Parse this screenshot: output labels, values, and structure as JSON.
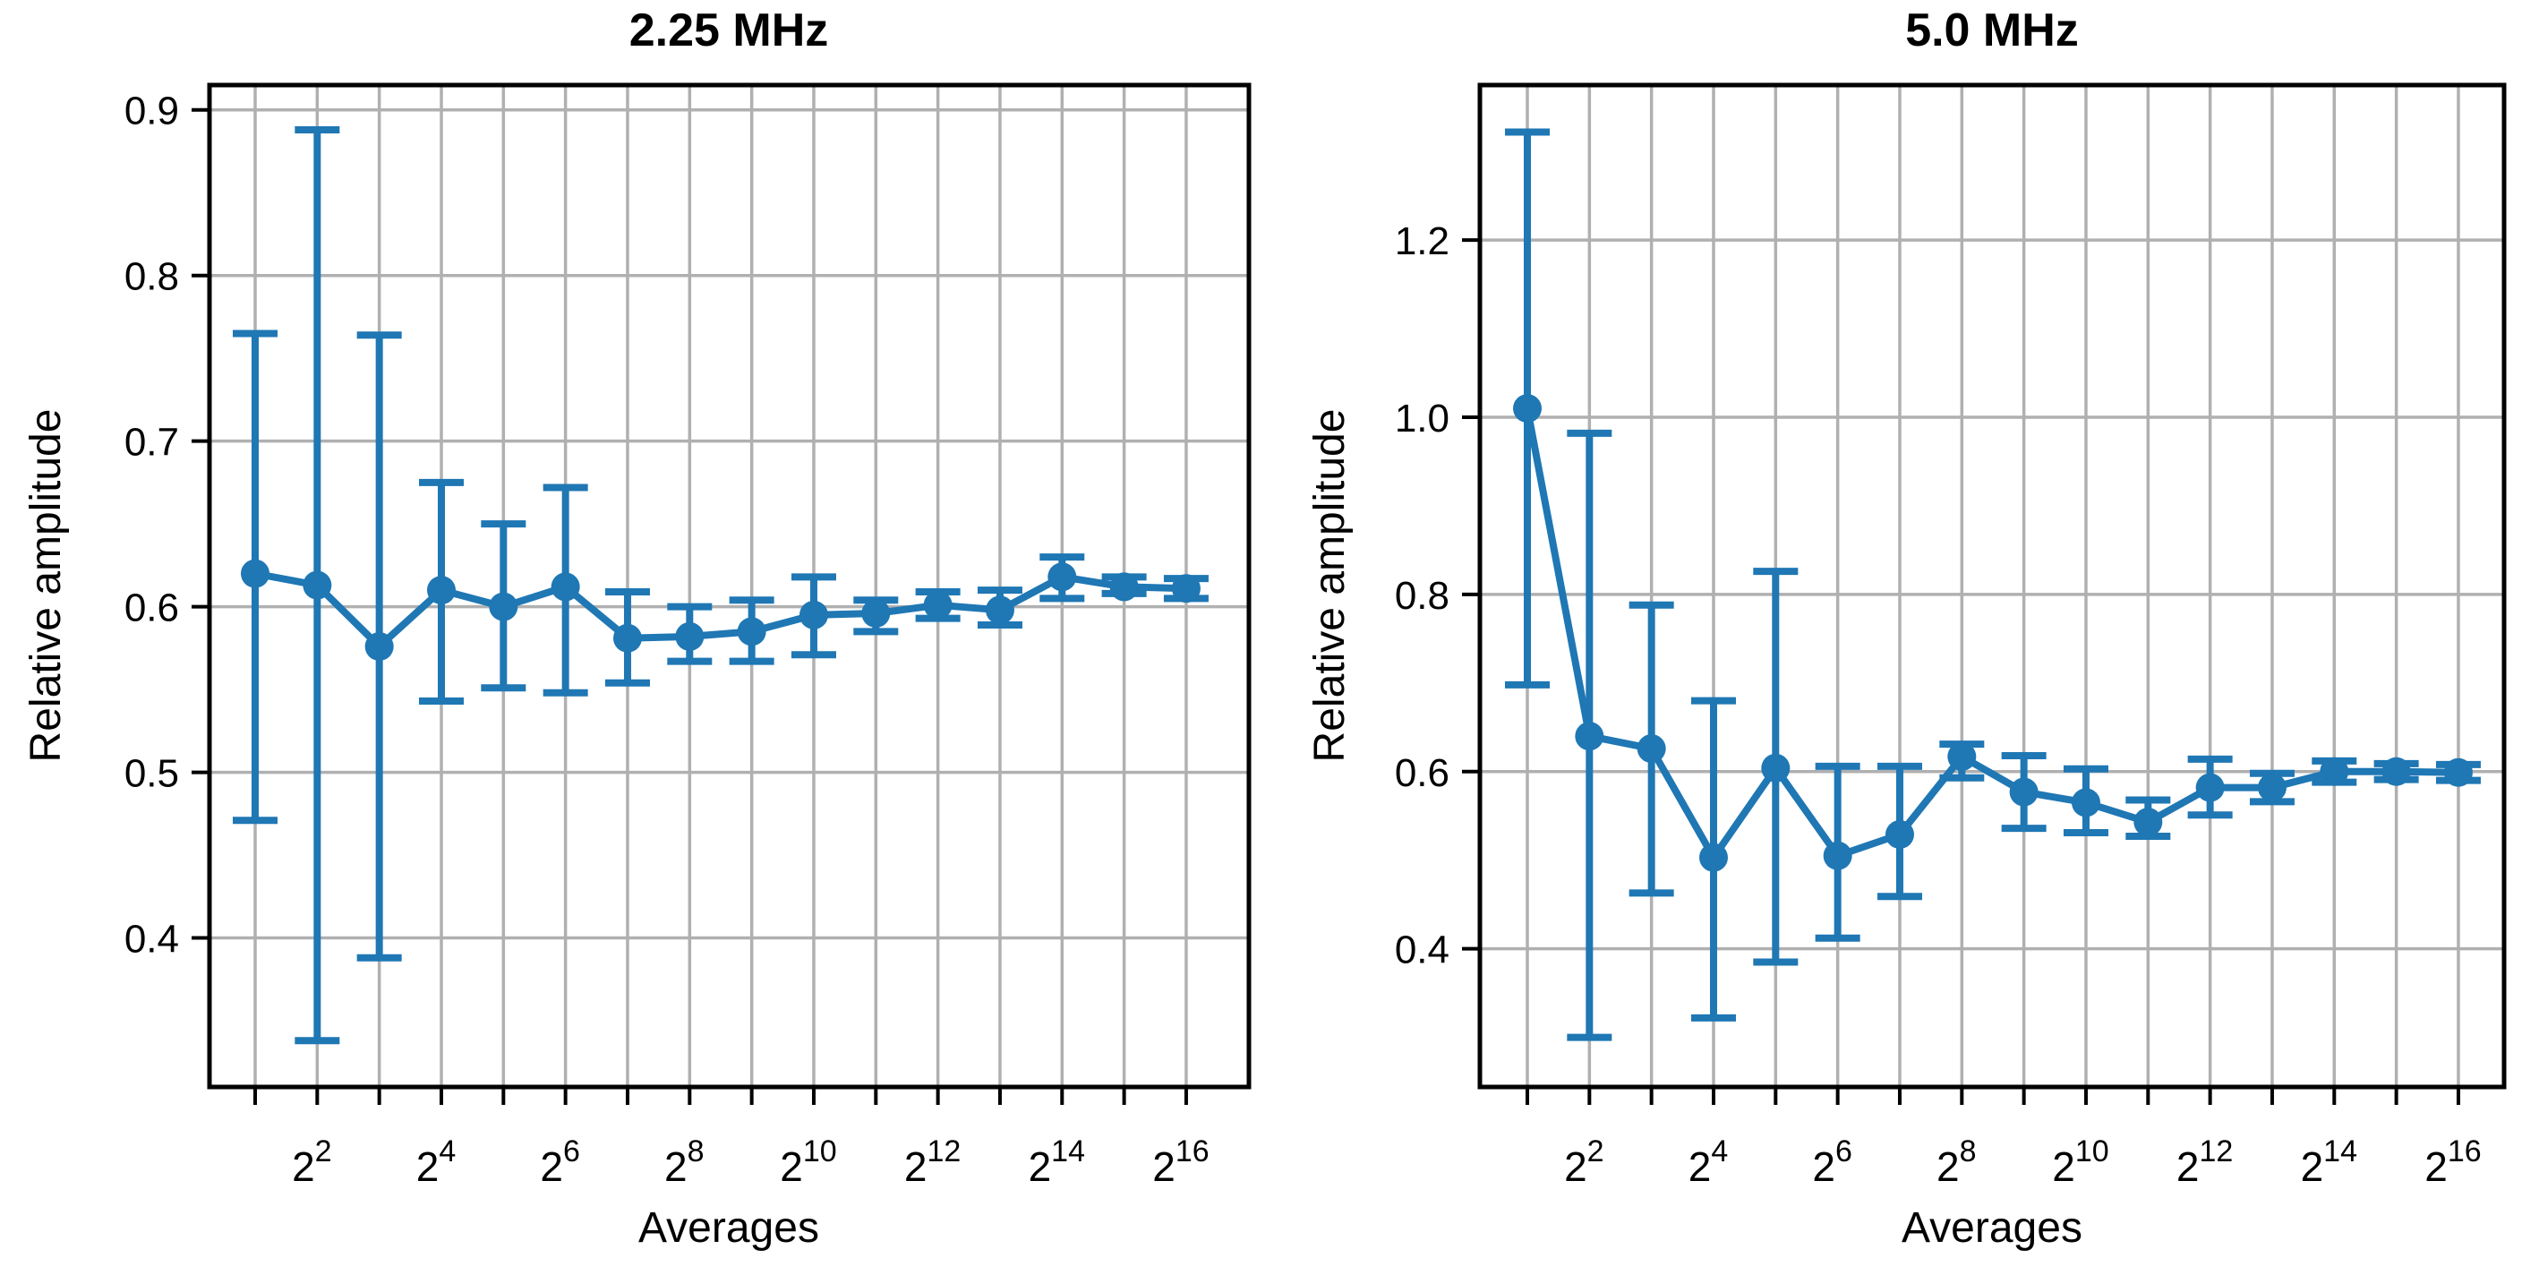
{
  "page": {
    "background": "#ffffff",
    "text_color": "#000000"
  },
  "style": {
    "series_color": "#1f77b4",
    "grid_color": "#b0b0b0",
    "spine_color": "#000000"
  },
  "chart_data": [
    {
      "type": "line+errorbar",
      "title": "2.25 MHz",
      "xlabel": "Averages",
      "ylabel": "Relative amplitude",
      "xscale": "log2",
      "x": [
        2,
        4,
        8,
        16,
        32,
        64,
        128,
        256,
        512,
        1024,
        2048,
        4096,
        8192,
        16384,
        32768,
        65536
      ],
      "x_exponents": [
        1,
        2,
        3,
        4,
        5,
        6,
        7,
        8,
        9,
        10,
        11,
        12,
        13,
        14,
        15,
        16
      ],
      "y": [
        0.62,
        0.613,
        0.576,
        0.61,
        0.6,
        0.612,
        0.581,
        0.582,
        0.585,
        0.595,
        0.596,
        0.601,
        0.598,
        0.618,
        0.612,
        0.611
      ],
      "y_lower": [
        0.471,
        0.338,
        0.388,
        0.543,
        0.551,
        0.548,
        0.554,
        0.567,
        0.567,
        0.571,
        0.585,
        0.593,
        0.589,
        0.605,
        0.608,
        0.605
      ],
      "y_upper": [
        0.765,
        0.888,
        0.764,
        0.675,
        0.65,
        0.672,
        0.609,
        0.6,
        0.604,
        0.618,
        0.604,
        0.609,
        0.61,
        0.63,
        0.618,
        0.617
      ],
      "ylim": [
        0.31,
        0.915
      ],
      "yticks": [
        0.9,
        0.8,
        0.7,
        0.6,
        0.5,
        0.4
      ],
      "ytick_labels": [
        "0.9",
        "0.8",
        "0.7",
        "0.6",
        "0.5",
        "0.4"
      ],
      "xtick_exponents_labeled": [
        2,
        4,
        6,
        8,
        10,
        12,
        14,
        16
      ],
      "xtick_base": "2",
      "grid": true,
      "legend": "none"
    },
    {
      "type": "line+errorbar",
      "title": "5.0 MHz",
      "xlabel": "Averages",
      "ylabel": "Relative amplitude",
      "xscale": "log2",
      "x": [
        2,
        4,
        8,
        16,
        32,
        64,
        128,
        256,
        512,
        1024,
        2048,
        4096,
        8192,
        16384,
        32768,
        65536
      ],
      "x_exponents": [
        1,
        2,
        3,
        4,
        5,
        6,
        7,
        8,
        9,
        10,
        11,
        12,
        13,
        14,
        15,
        16
      ],
      "y": [
        1.01,
        0.64,
        0.626,
        0.503,
        0.604,
        0.505,
        0.529,
        0.617,
        0.577,
        0.565,
        0.543,
        0.582,
        0.582,
        0.6,
        0.6,
        0.599
      ],
      "y_lower": [
        0.698,
        0.3,
        0.463,
        0.322,
        0.385,
        0.412,
        0.459,
        0.593,
        0.536,
        0.531,
        0.527,
        0.551,
        0.566,
        0.588,
        0.591,
        0.59
      ],
      "y_upper": [
        1.322,
        0.982,
        0.788,
        0.68,
        0.826,
        0.606,
        0.606,
        0.631,
        0.618,
        0.603,
        0.568,
        0.614,
        0.598,
        0.612,
        0.609,
        0.608
      ],
      "ylim": [
        0.244,
        1.375
      ],
      "yticks": [
        1.2,
        1.0,
        0.8,
        0.6,
        0.4
      ],
      "ytick_labels": [
        "1.2",
        "1.0",
        "0.8",
        "0.6",
        "0.4"
      ],
      "xtick_exponents_labeled": [
        2,
        4,
        6,
        8,
        10,
        12,
        14,
        16
      ],
      "xtick_base": "2",
      "grid": true,
      "legend": "none"
    }
  ]
}
